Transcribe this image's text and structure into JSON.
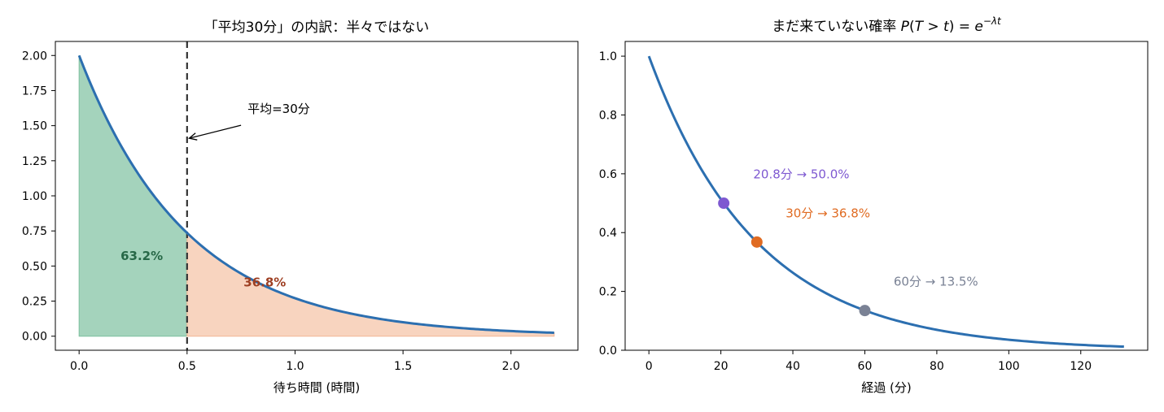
{
  "chart_data": [
    {
      "type": "area",
      "title": "「平均30分」の内訳：半々ではない",
      "xlabel": "待ち時間 (時間)",
      "ylabel": "",
      "xlim": [
        -0.11,
        2.31
      ],
      "ylim": [
        -0.1,
        2.1
      ],
      "xticks": [
        0.0,
        0.5,
        1.0,
        1.5,
        2.0
      ],
      "xtick_labels": [
        "0.0",
        "0.5",
        "1.0",
        "1.5",
        "2.0"
      ],
      "yticks": [
        0.0,
        0.25,
        0.5,
        0.75,
        1.0,
        1.25,
        1.5,
        1.75,
        2.0
      ],
      "ytick_labels": [
        "0.00",
        "0.25",
        "0.50",
        "0.75",
        "1.00",
        "1.25",
        "1.50",
        "1.75",
        "2.00"
      ],
      "series": [
        {
          "function": "2*exp(-2x)",
          "x_range": [
            0,
            2.2
          ],
          "color": "#2c6fb0"
        }
      ],
      "regions": [
        {
          "label": "63.2%",
          "x_range": [
            0,
            0.5
          ],
          "color": "#7dc09f",
          "text_color": "#276847",
          "label_pos": [
            0.29,
            0.59
          ]
        },
        {
          "label": "36.8%",
          "x_range": [
            0.5,
            2.2
          ],
          "color": "#f3b795",
          "text_color": "#9e3f22",
          "label_pos": [
            0.86,
            0.4
          ]
        }
      ],
      "vline": {
        "x": 0.5,
        "style": "dashed",
        "color": "#333333"
      },
      "annotation": {
        "text": "平均=30分",
        "text_pos": [
          0.78,
          1.59
        ],
        "arrow_to": [
          0.51,
          1.41
        ]
      },
      "grid": false
    },
    {
      "type": "line",
      "title": "まだ来ていない確率 P(T > t) = e^{−λt}",
      "title_parts": {
        "prefix": "まだ来ていない確率 ",
        "P": "P",
        "open": "(",
        "T": "T",
        "gt": " > ",
        "t": "t",
        "close": ") = ",
        "e": "e",
        "exp": "−λt"
      },
      "xlabel": "経過 (分)",
      "ylabel": "",
      "xlim": [
        -6.6,
        138.6
      ],
      "ylim": [
        0.0,
        1.05
      ],
      "xticks": [
        0,
        20,
        40,
        60,
        80,
        100,
        120
      ],
      "xtick_labels": [
        "0",
        "20",
        "40",
        "60",
        "80",
        "100",
        "120"
      ],
      "yticks": [
        0.0,
        0.2,
        0.4,
        0.6,
        0.8,
        1.0
      ],
      "ytick_labels": [
        "0.0",
        "0.2",
        "0.4",
        "0.6",
        "0.8",
        "1.0"
      ],
      "series": [
        {
          "function": "exp(-x/30)",
          "x_range": [
            0,
            132
          ],
          "color": "#2c6fb0"
        }
      ],
      "points": [
        {
          "x": 20.8,
          "y": 0.5,
          "color": "#7e59d1",
          "label": "20.8分 → 50.0%",
          "label_pos": [
            29.0,
            0.585
          ]
        },
        {
          "x": 30,
          "y": 0.368,
          "color": "#e06b22",
          "label": "30分 → 36.8%",
          "label_pos": [
            38.0,
            0.452
          ]
        },
        {
          "x": 60,
          "y": 0.135,
          "color": "#7a8295",
          "label": "60分 → 13.5%",
          "label_pos": [
            68.0,
            0.219
          ]
        }
      ],
      "grid": false
    }
  ]
}
